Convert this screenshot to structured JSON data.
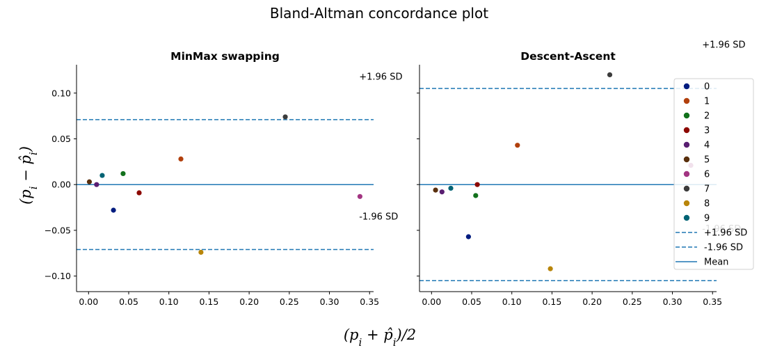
{
  "figure": {
    "title": "Bland-Altman concordance plot",
    "ylabel": "(p_i − p̂_i)",
    "xlabel": "(p_i + p̂_i)/2"
  },
  "chart_data": [
    {
      "type": "scatter",
      "title": "MinMax swapping",
      "xlim": [
        -0.015,
        0.355
      ],
      "ylim": [
        -0.117,
        0.131
      ],
      "xticks": [
        0.0,
        0.05,
        0.1,
        0.15,
        0.2,
        0.25,
        0.3,
        0.35
      ],
      "xtick_labels": [
        "0.00",
        "0.05",
        "0.10",
        "0.15",
        "0.20",
        "0.25",
        "0.30",
        "0.35"
      ],
      "yticks": [
        -0.1,
        -0.05,
        0.0,
        0.05,
        0.1
      ],
      "ytick_labels": [
        "−0.10",
        "−0.05",
        "0.00",
        "0.05",
        "0.10"
      ],
      "show_yticklabels": true,
      "upper_loa": 0.071,
      "lower_loa": -0.071,
      "mean": 0.0,
      "points": [
        {
          "cls": "0",
          "x": 0.031,
          "y": -0.028
        },
        {
          "cls": "1",
          "x": 0.115,
          "y": 0.028
        },
        {
          "cls": "2",
          "x": 0.043,
          "y": 0.012
        },
        {
          "cls": "3",
          "x": 0.063,
          "y": -0.009
        },
        {
          "cls": "4",
          "x": 0.01,
          "y": 0.0
        },
        {
          "cls": "5",
          "x": 0.001,
          "y": 0.003
        },
        {
          "cls": "6",
          "x": 0.338,
          "y": -0.013
        },
        {
          "cls": "7",
          "x": 0.245,
          "y": 0.074
        },
        {
          "cls": "8",
          "x": 0.14,
          "y": -0.074
        },
        {
          "cls": "9",
          "x": 0.017,
          "y": 0.01
        }
      ],
      "annotations": [
        {
          "text": "+1.96 SD",
          "x": 0.337,
          "y": 0.118
        },
        {
          "text": "-1.96 SD",
          "x": 0.337,
          "y": -0.035
        }
      ]
    },
    {
      "type": "scatter",
      "title": "Descent-Ascent",
      "xlim": [
        -0.015,
        0.355
      ],
      "ylim": [
        -0.117,
        0.131
      ],
      "xticks": [
        0.0,
        0.05,
        0.1,
        0.15,
        0.2,
        0.25,
        0.3,
        0.35
      ],
      "xtick_labels": [
        "0.00",
        "0.05",
        "0.10",
        "0.15",
        "0.20",
        "0.25",
        "0.30",
        "0.35"
      ],
      "yticks": [
        -0.1,
        -0.05,
        0.0,
        0.05,
        0.1
      ],
      "ytick_labels": [
        "",
        "",
        "",
        "",
        ""
      ],
      "show_yticklabels": false,
      "upper_loa": 0.105,
      "lower_loa": -0.105,
      "mean": 0.0,
      "points": [
        {
          "cls": "0",
          "x": 0.046,
          "y": -0.057
        },
        {
          "cls": "1",
          "x": 0.107,
          "y": 0.043
        },
        {
          "cls": "2",
          "x": 0.055,
          "y": -0.012
        },
        {
          "cls": "3",
          "x": 0.057,
          "y": 0.0
        },
        {
          "cls": "4",
          "x": 0.013,
          "y": -0.008
        },
        {
          "cls": "5",
          "x": 0.005,
          "y": -0.006
        },
        {
          "cls": "6",
          "x": 0.323,
          "y": 0.021
        },
        {
          "cls": "7",
          "x": 0.222,
          "y": 0.12
        },
        {
          "cls": "8",
          "x": 0.148,
          "y": -0.092
        },
        {
          "cls": "9",
          "x": 0.024,
          "y": -0.004
        }
      ],
      "annotations": [
        {
          "text": "+1.96 SD",
          "x": 0.337,
          "y": 0.153
        },
        {
          "text": "-1.96 SD",
          "x": 0.337,
          "y": -0.048
        }
      ]
    }
  ],
  "legend": {
    "placement": "right",
    "classes": [
      {
        "label": "0",
        "color": "#001c7f"
      },
      {
        "label": "1",
        "color": "#b1400d"
      },
      {
        "label": "2",
        "color": "#12711c"
      },
      {
        "label": "3",
        "color": "#8c0800"
      },
      {
        "label": "4",
        "color": "#591e71"
      },
      {
        "label": "5",
        "color": "#592f0d"
      },
      {
        "label": "6",
        "color": "#a23582"
      },
      {
        "label": "7",
        "color": "#3c3c3c"
      },
      {
        "label": "8",
        "color": "#b8850a"
      },
      {
        "label": "9",
        "color": "#006374"
      }
    ],
    "lines": [
      {
        "label": "+1.96 SD",
        "style": "dashed"
      },
      {
        "label": "-1.96 SD",
        "style": "dashed"
      },
      {
        "label": "Mean",
        "style": "solid"
      }
    ]
  },
  "colors": {
    "line": "#1f77b4",
    "axis": "#000000"
  }
}
